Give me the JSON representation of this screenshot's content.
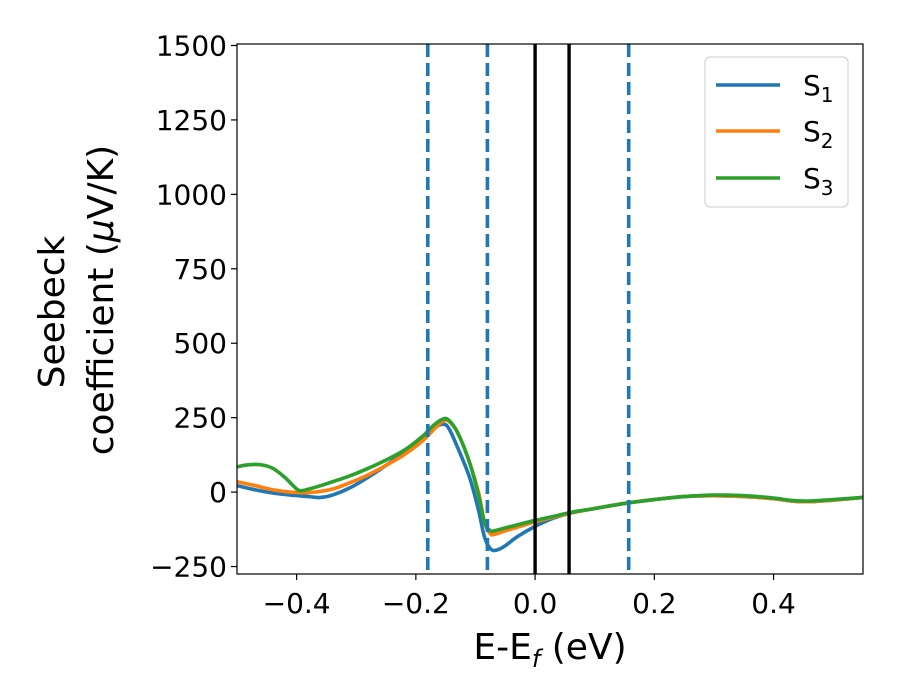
{
  "chart_data": {
    "type": "line",
    "xlabel": "E-E",
    "xlabel_sub": "f",
    "xlabel_unit": " (eV)",
    "ylabel_line1": "Seebeck",
    "ylabel_line2_pre": "coefficient  (",
    "ylabel_line2_mu": "μ",
    "ylabel_line2_post": "V/K)",
    "xlim": [
      -0.5,
      0.55
    ],
    "ylim": [
      -275,
      1505
    ],
    "xticks": [
      -0.4,
      -0.2,
      0.0,
      0.2,
      0.4
    ],
    "xtick_labels": [
      "−0.4",
      "−0.2",
      "0.0",
      "0.2",
      "0.4"
    ],
    "yticks": [
      -250,
      0,
      250,
      500,
      750,
      1000,
      1250,
      1500
    ],
    "ytick_labels": [
      "−250",
      "0",
      "250",
      "500",
      "750",
      "1000",
      "1250",
      "1500"
    ],
    "grid": false,
    "legend_position": "top-right",
    "series": [
      {
        "name": "S",
        "name_sub": "1",
        "color": "#1f77b4",
        "points": [
          [
            -0.5,
            22
          ],
          [
            -0.47,
            8
          ],
          [
            -0.44,
            -3
          ],
          [
            -0.41,
            -10
          ],
          [
            -0.38,
            -15
          ],
          [
            -0.36,
            -18
          ],
          [
            -0.34,
            -10
          ],
          [
            -0.31,
            15
          ],
          [
            -0.28,
            50
          ],
          [
            -0.25,
            90
          ],
          [
            -0.22,
            135
          ],
          [
            -0.19,
            185
          ],
          [
            -0.17,
            215
          ],
          [
            -0.155,
            228
          ],
          [
            -0.145,
            215
          ],
          [
            -0.13,
            150
          ],
          [
            -0.11,
            50
          ],
          [
            -0.095,
            -60
          ],
          [
            -0.085,
            -150
          ],
          [
            -0.075,
            -190
          ],
          [
            -0.065,
            -195
          ],
          [
            -0.05,
            -180
          ],
          [
            -0.03,
            -150
          ],
          [
            0.0,
            -115
          ],
          [
            0.03,
            -88
          ],
          [
            0.06,
            -70
          ],
          [
            0.1,
            -55
          ],
          [
            0.15,
            -38
          ],
          [
            0.2,
            -25
          ],
          [
            0.25,
            -15
          ],
          [
            0.3,
            -12
          ],
          [
            0.35,
            -15
          ],
          [
            0.4,
            -22
          ],
          [
            0.43,
            -30
          ],
          [
            0.46,
            -32
          ],
          [
            0.5,
            -27
          ],
          [
            0.55,
            -18
          ]
        ]
      },
      {
        "name": "S",
        "name_sub": "2",
        "color": "#ff7f0e",
        "points": [
          [
            -0.5,
            35
          ],
          [
            -0.47,
            22
          ],
          [
            -0.44,
            8
          ],
          [
            -0.41,
            0
          ],
          [
            -0.39,
            -2
          ],
          [
            -0.37,
            0
          ],
          [
            -0.34,
            10
          ],
          [
            -0.31,
            32
          ],
          [
            -0.28,
            58
          ],
          [
            -0.25,
            90
          ],
          [
            -0.22,
            125
          ],
          [
            -0.19,
            170
          ],
          [
            -0.17,
            210
          ],
          [
            -0.155,
            238
          ],
          [
            -0.145,
            238
          ],
          [
            -0.13,
            200
          ],
          [
            -0.11,
            100
          ],
          [
            -0.095,
            0
          ],
          [
            -0.085,
            -100
          ],
          [
            -0.075,
            -140
          ],
          [
            -0.065,
            -140
          ],
          [
            -0.05,
            -130
          ],
          [
            -0.03,
            -118
          ],
          [
            0.0,
            -100
          ],
          [
            0.03,
            -85
          ],
          [
            0.06,
            -70
          ],
          [
            0.1,
            -55
          ],
          [
            0.15,
            -38
          ],
          [
            0.2,
            -25
          ],
          [
            0.25,
            -15
          ],
          [
            0.3,
            -12
          ],
          [
            0.35,
            -15
          ],
          [
            0.4,
            -22
          ],
          [
            0.43,
            -30
          ],
          [
            0.46,
            -32
          ],
          [
            0.5,
            -27
          ],
          [
            0.55,
            -18
          ]
        ]
      },
      {
        "name": "S",
        "name_sub": "3",
        "color": "#2ca02c",
        "points": [
          [
            -0.5,
            85
          ],
          [
            -0.48,
            92
          ],
          [
            -0.46,
            92
          ],
          [
            -0.44,
            80
          ],
          [
            -0.42,
            50
          ],
          [
            -0.405,
            20
          ],
          [
            -0.395,
            5
          ],
          [
            -0.38,
            10
          ],
          [
            -0.35,
            28
          ],
          [
            -0.31,
            55
          ],
          [
            -0.28,
            80
          ],
          [
            -0.25,
            108
          ],
          [
            -0.22,
            140
          ],
          [
            -0.19,
            185
          ],
          [
            -0.17,
            225
          ],
          [
            -0.155,
            245
          ],
          [
            -0.145,
            242
          ],
          [
            -0.13,
            200
          ],
          [
            -0.11,
            100
          ],
          [
            -0.095,
            -10
          ],
          [
            -0.085,
            -100
          ],
          [
            -0.075,
            -130
          ],
          [
            -0.065,
            -128
          ],
          [
            -0.05,
            -120
          ],
          [
            -0.03,
            -110
          ],
          [
            0.0,
            -95
          ],
          [
            0.03,
            -82
          ],
          [
            0.06,
            -68
          ],
          [
            0.1,
            -55
          ],
          [
            0.15,
            -38
          ],
          [
            0.2,
            -25
          ],
          [
            0.25,
            -15
          ],
          [
            0.3,
            -10
          ],
          [
            0.35,
            -12
          ],
          [
            0.4,
            -20
          ],
          [
            0.43,
            -28
          ],
          [
            0.46,
            -30
          ],
          [
            0.5,
            -25
          ],
          [
            0.55,
            -18
          ]
        ]
      }
    ],
    "vlines": [
      {
        "x": -0.18,
        "style": "dashed",
        "color": "#1f77b4"
      },
      {
        "x": -0.08,
        "style": "dashed",
        "color": "#1f77b4"
      },
      {
        "x": 0.0,
        "style": "solid",
        "color": "#000000"
      },
      {
        "x": 0.057,
        "style": "solid",
        "color": "#000000"
      },
      {
        "x": 0.157,
        "style": "dashed",
        "color": "#1f77b4"
      }
    ]
  }
}
